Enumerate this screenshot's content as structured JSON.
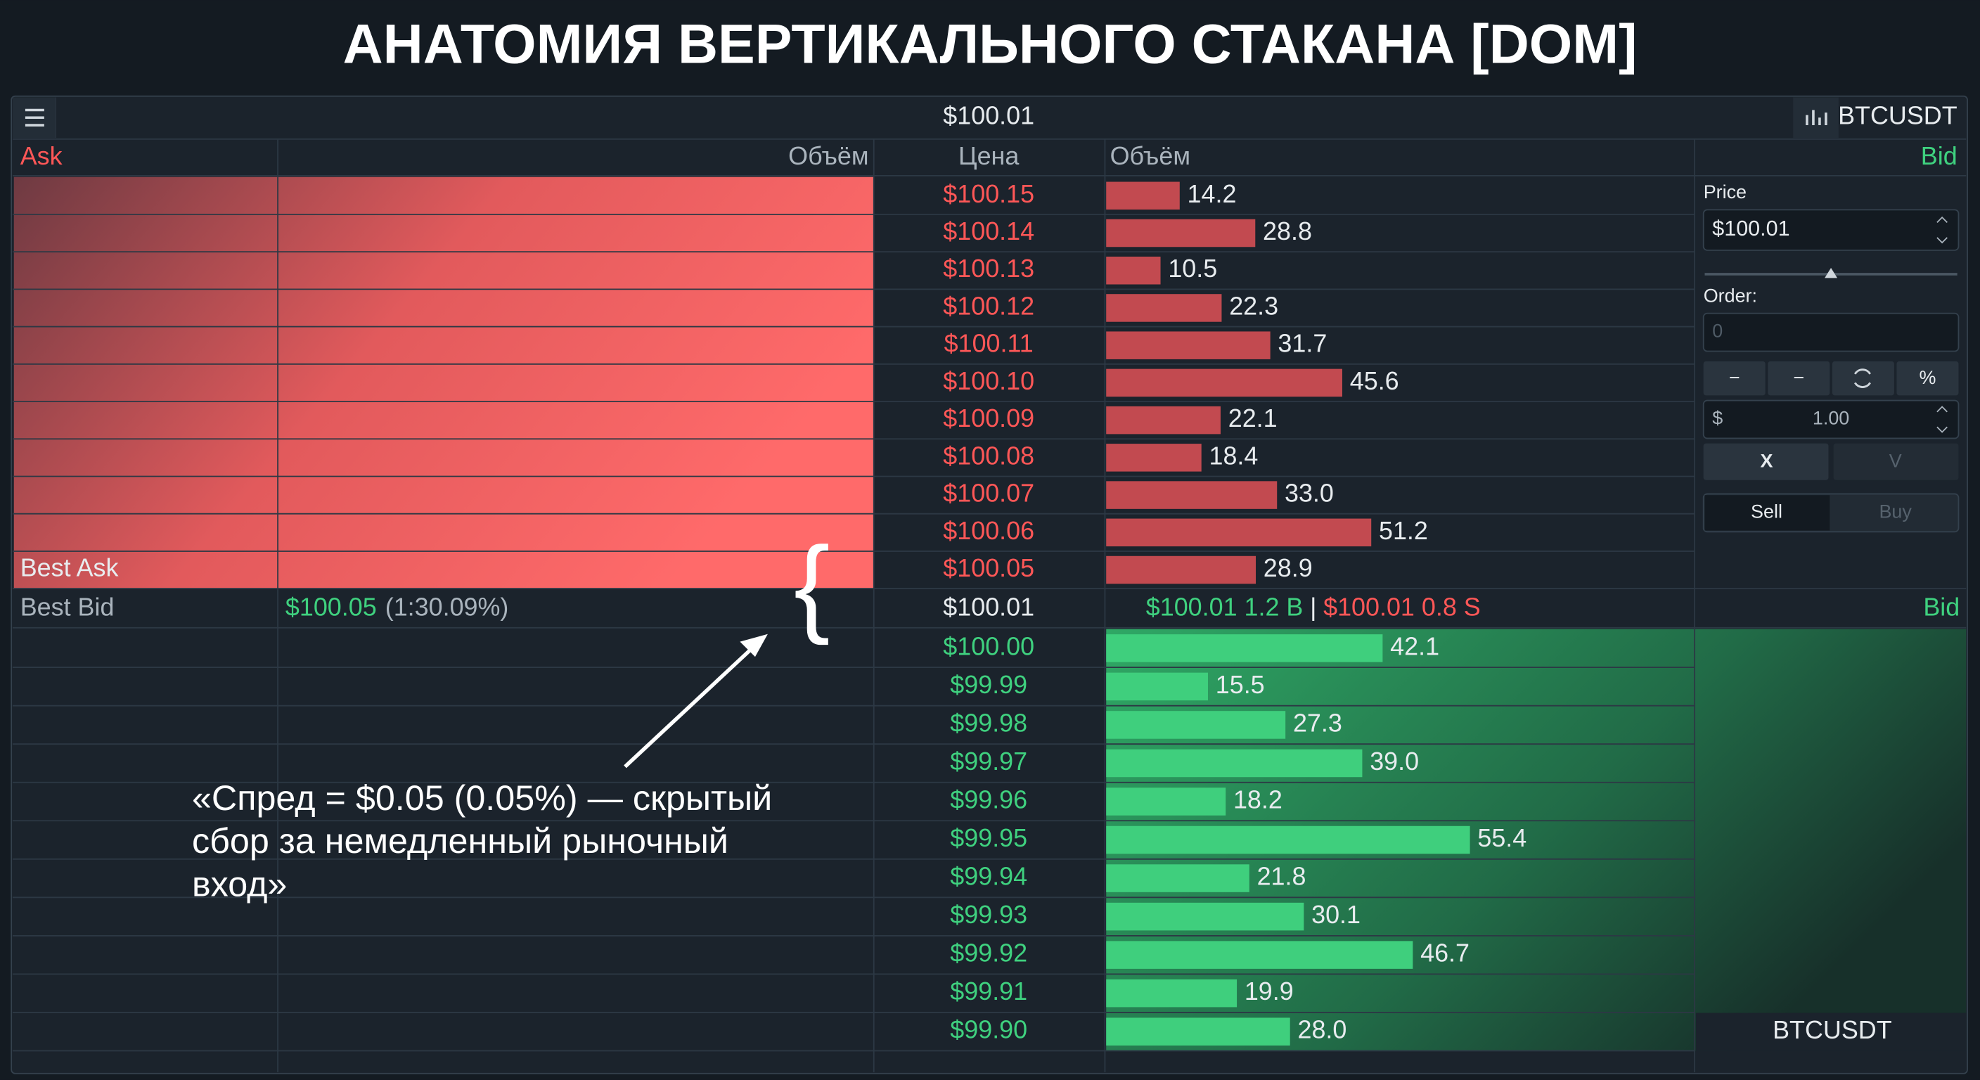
{
  "title": "АНАТОМИЯ ВЕРТИКАЛЬНОГО СТАКАНА [DOM]",
  "header": {
    "price": "$100.01",
    "symbol": "BTCUSDT"
  },
  "columns": {
    "ask": "Ask",
    "volume_left": "Объём",
    "price": "Цена",
    "volume_right": "Объём",
    "bid": "Bid"
  },
  "asks": {
    "prices": [
      "$100.15",
      "$100.14",
      "$100.13",
      "$100.12",
      "$100.11",
      "$100.10",
      "$100.09",
      "$100.08",
      "$100.07",
      "$100.06",
      "$100.05"
    ],
    "volumes": [
      14.2,
      28.8,
      10.5,
      22.3,
      31.7,
      45.6,
      22.1,
      18.4,
      33,
      51.2,
      28.9
    ],
    "value_labels": [
      "14.2",
      "28.8",
      "10.5",
      "22.3",
      "31.7",
      "45.6",
      "22.1",
      "18.4",
      "33.0",
      "51.2",
      "28.9"
    ]
  },
  "best_ask": "Best Ask",
  "best_bid_row": {
    "label": "Best Bid",
    "price": "$100.05",
    "ratio": "(1:30.09%)",
    "mid_price": "$100.01",
    "buy": "$100.01 1.2 B",
    "separator": "|",
    "sell": "$100.01 0.8 S",
    "side": "Bid"
  },
  "bids": {
    "prices": [
      "$100.00",
      "$99.99",
      "$99.98",
      "$99.97",
      "$99.96",
      "$99.95",
      "$99.94",
      "$99.93",
      "$99.92",
      "$99.91",
      "$99.90"
    ],
    "volumes": [
      42.1,
      15.5,
      27.3,
      39,
      18.2,
      55.4,
      21.8,
      30.1,
      46.7,
      19.9,
      28
    ],
    "value_labels": [
      "42.1",
      "15.5",
      "27.3",
      "39.0",
      "18.2",
      "55.4",
      "21.8",
      "30.1",
      "46.7",
      "19.9",
      "28.0"
    ]
  },
  "order_panel": {
    "price_label": "Price",
    "price_input": "$100.01",
    "order_label": "Order:",
    "order_input": "0",
    "buttons": [
      "−",
      "−",
      "%"
    ],
    "currency": "$",
    "amount": "1.00",
    "cancel": "X",
    "confirm": "V",
    "sell": "Sell",
    "buy": "Buy",
    "footer_symbol": "BTCUSDT"
  },
  "annotation": {
    "lines": [
      "«Спред = $0.05 (0.05%) — скрытый",
      "сбор за немедленный рыночный",
      "вход»"
    ]
  }
}
